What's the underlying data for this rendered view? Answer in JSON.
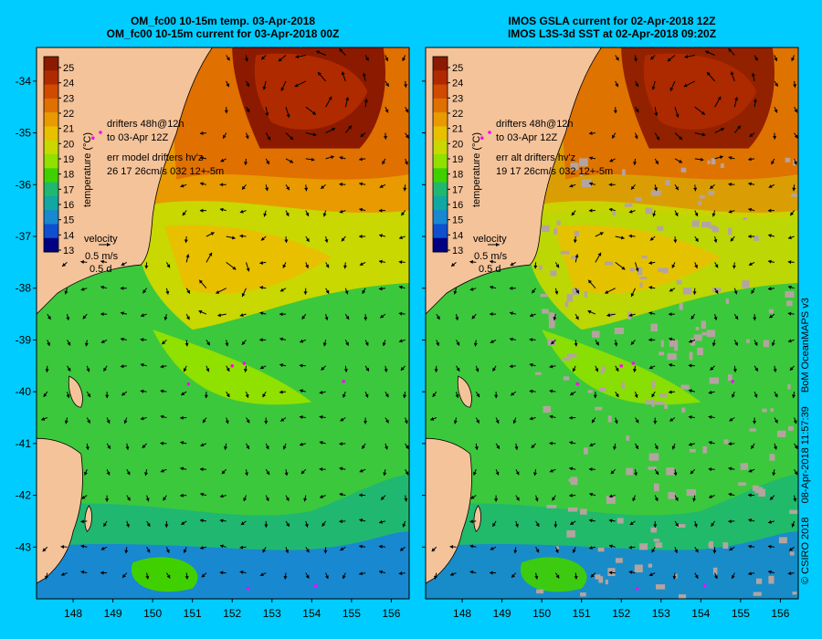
{
  "panels": [
    {
      "id": "model",
      "title_line1": "OM_fc00 10-15m temp. 03-Apr-2018",
      "title_line2": "OM_fc00 10-15m current for 03-Apr-2018 00Z",
      "legend": {
        "drifters_line1": "drifters 48h@12h",
        "drifters_line2": "to 03-Apr 12Z",
        "err_line1": "err model drifters hv'z",
        "err_line2": "26 17 26cm/s 032 12+-5m"
      }
    },
    {
      "id": "observed",
      "title_line1": "IMOS GSLA current for 02-Apr-2018 12Z",
      "title_line2": "IMOS L3S-3d SST at 02-Apr-2018 09:20Z",
      "legend": {
        "drifters_line1": "drifters 48h@12h",
        "drifters_line2": "to 03-Apr 12Z",
        "err_line1": "err alt drifters hv'z",
        "err_line2": "19 17 26cm/s 032 12+-5m"
      }
    }
  ],
  "colorbar": {
    "label": "temperature (°C)",
    "ticks": [
      "25",
      "24",
      "23",
      "22",
      "21",
      "20",
      "19",
      "18",
      "17",
      "16",
      "15",
      "14",
      "13"
    ],
    "colors": [
      "#8b1a00",
      "#b02a00",
      "#d04a00",
      "#e07000",
      "#e89a00",
      "#e8c000",
      "#c8d800",
      "#90e000",
      "#40d000",
      "#20b870",
      "#10a8a0",
      "#1888d0",
      "#1050d0",
      "#000080"
    ]
  },
  "velocity_key": {
    "label": "velocity",
    "speed": "0.5 m/s",
    "scale": "0.5 d"
  },
  "axes": {
    "lon_ticks": [
      "148",
      "149",
      "150",
      "151",
      "152",
      "153",
      "154",
      "155",
      "156"
    ],
    "lat_ticks": [
      "-34",
      "-35",
      "-36",
      "-37",
      "-38",
      "-39",
      "-40",
      "-41",
      "-42",
      "-43"
    ]
  },
  "copyright": {
    "owner": "© CSIRO 2018",
    "timestamp": "08-Apr-2018 11:57:39",
    "product": "BoM OceanMAPS v3"
  },
  "colors": {
    "background": "#00ccff",
    "land": "#f5c39a",
    "drifter_track": "#ff00ff",
    "cloud_mask": "#b4a4a0"
  }
}
